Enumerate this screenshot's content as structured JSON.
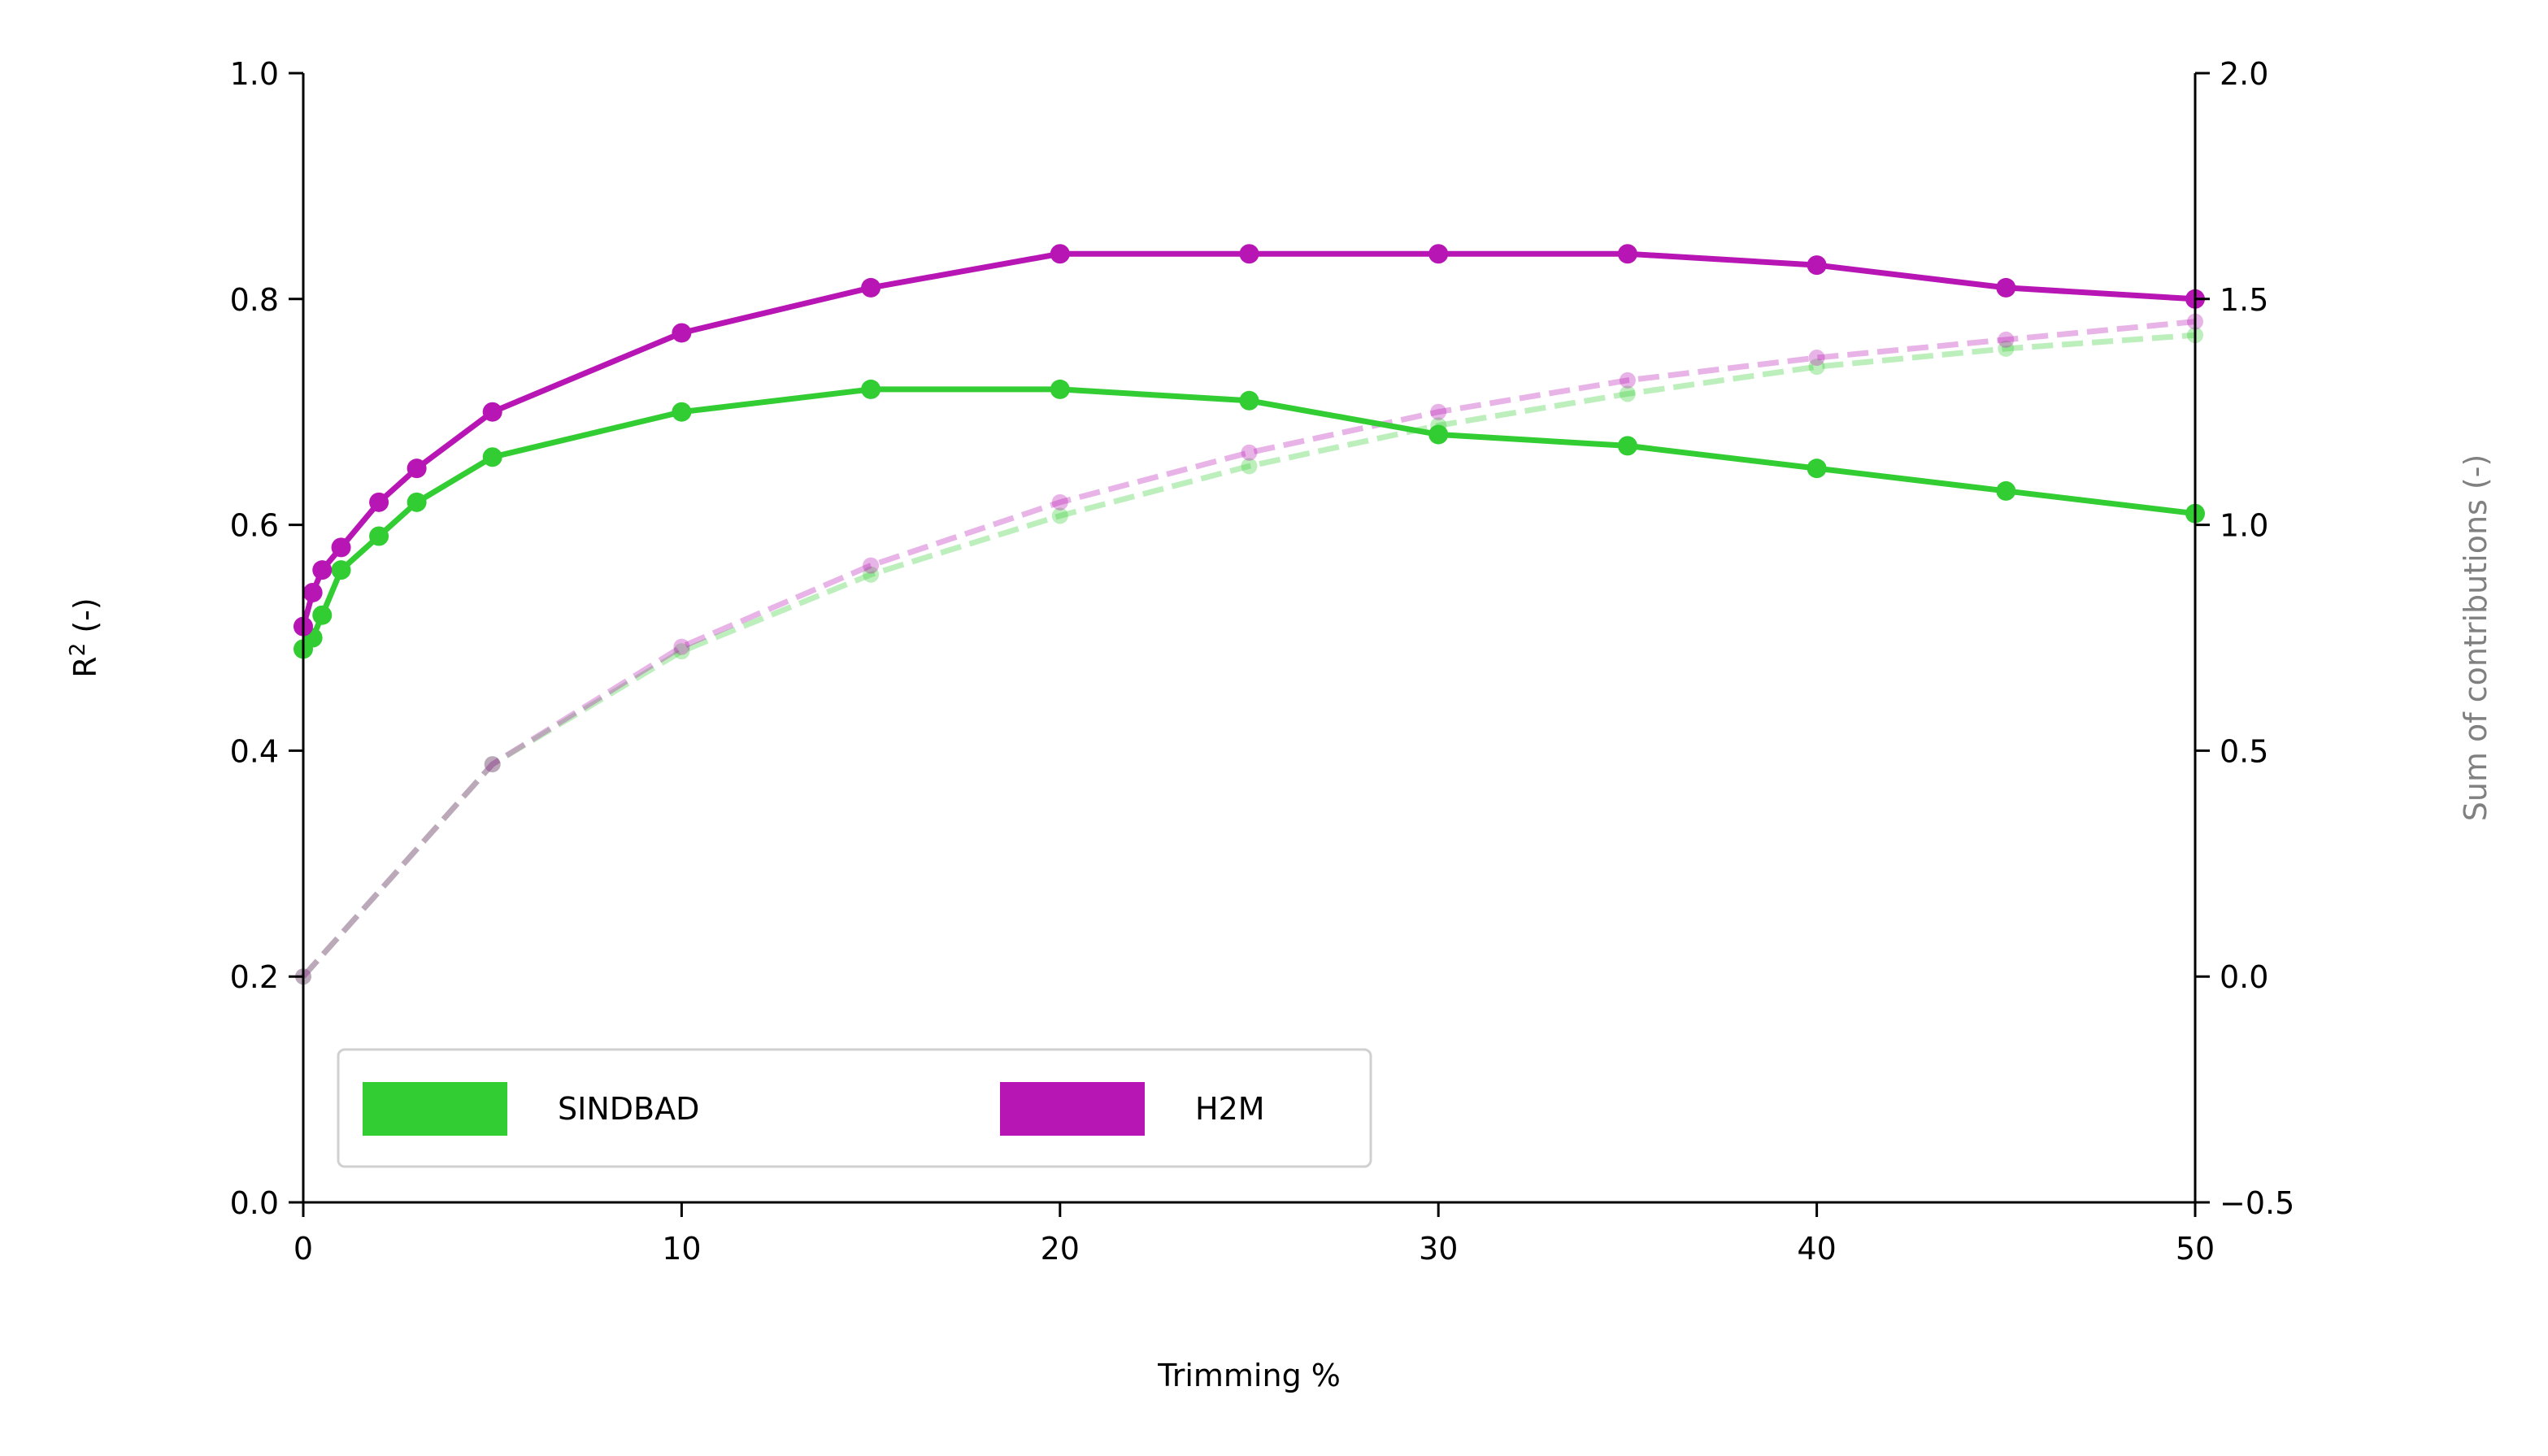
{
  "chart_data": {
    "type": "line",
    "xlabel": "Trimming %",
    "ylabel_left": "R",
    "ylabel_left_sup": "2",
    "ylabel_left_suffix": " (-)",
    "ylabel_right": "Sum of contributions (-)",
    "xlim": [
      0,
      50
    ],
    "ylim_left": [
      0,
      1
    ],
    "ylim_right": [
      -0.5,
      2.0
    ],
    "x_ticks": [
      0,
      10,
      20,
      30,
      40,
      50
    ],
    "x_tick_labels": [
      "0",
      "10",
      "20",
      "30",
      "40",
      "50"
    ],
    "y_left_ticks": [
      0,
      0.2,
      0.4,
      0.6,
      0.8,
      1.0
    ],
    "y_left_tick_labels": [
      "0.0",
      "0.2",
      "0.4",
      "0.6",
      "0.8",
      "1.0"
    ],
    "y_right_ticks": [
      -0.5,
      0,
      0.5,
      1.0,
      1.5,
      2.0
    ],
    "y_right_tick_labels": [
      "−0.5",
      "0.0",
      "0.5",
      "1.0",
      "1.5",
      "2.0"
    ],
    "grid": false,
    "legend_placement": "lower-left",
    "colors": {
      "sindbad": "#32cd32",
      "h2m": "#b816b4",
      "right_axis_label": "#808080"
    },
    "series": [
      {
        "name": "SINDBAD",
        "axis": "left",
        "style": "solid",
        "x": [
          0,
          0.25,
          0.5,
          1,
          2,
          3,
          5,
          10,
          15,
          20,
          25,
          30,
          35,
          40,
          45,
          50
        ],
        "y": [
          0.49,
          0.5,
          0.52,
          0.56,
          0.59,
          0.62,
          0.66,
          0.7,
          0.72,
          0.72,
          0.71,
          0.68,
          0.67,
          0.65,
          0.63,
          0.61
        ]
      },
      {
        "name": "H2M",
        "axis": "left",
        "style": "solid",
        "x": [
          0,
          0.25,
          0.5,
          1,
          2,
          3,
          5,
          10,
          15,
          20,
          25,
          30,
          35,
          40,
          45,
          50
        ],
        "y": [
          0.51,
          0.54,
          0.56,
          0.58,
          0.62,
          0.65,
          0.7,
          0.77,
          0.81,
          0.84,
          0.84,
          0.84,
          0.84,
          0.83,
          0.81,
          0.8
        ]
      },
      {
        "axis": "right",
        "style": "dashed",
        "color_of": "SINDBAD",
        "x": [
          0,
          5,
          10,
          15,
          20,
          25,
          30,
          35,
          40,
          45,
          50
        ],
        "y": [
          0.0,
          0.47,
          0.72,
          0.89,
          1.02,
          1.13,
          1.22,
          1.29,
          1.35,
          1.39,
          1.42
        ]
      },
      {
        "axis": "right",
        "style": "dashed",
        "color_of": "H2M",
        "x": [
          0,
          5,
          10,
          15,
          20,
          25,
          30,
          35,
          40,
          45,
          50
        ],
        "y": [
          0.0,
          0.47,
          0.73,
          0.91,
          1.05,
          1.16,
          1.25,
          1.32,
          1.37,
          1.41,
          1.45
        ]
      }
    ],
    "legend": [
      {
        "label": "SINDBAD",
        "color_of": "SINDBAD"
      },
      {
        "label": "H2M",
        "color_of": "H2M"
      }
    ]
  }
}
